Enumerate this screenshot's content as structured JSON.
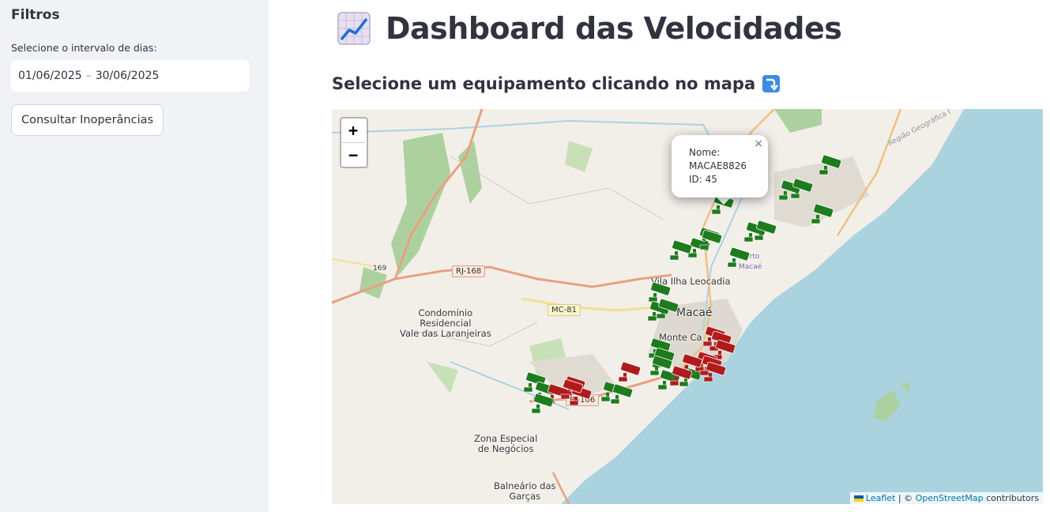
{
  "sidebar": {
    "title": "Filtros",
    "date_label": "Selecione o intervalo de dias:",
    "date_start": "01/06/2025",
    "date_sep": "–",
    "date_end": "30/06/2025",
    "button_label": "Consultar Inoperâncias"
  },
  "main": {
    "title": "Dashboard das Velocidades",
    "title_icon": "chart-increasing-icon",
    "subtitle": "Selecione um equipamento clicando no mapa",
    "subtitle_icon": "arrow-down-icon"
  },
  "map": {
    "zoom_in": "+",
    "zoom_out": "−",
    "popup": {
      "line1": "Nome:",
      "line2": "MACAE8826",
      "line3": "ID: 45",
      "close": "×"
    },
    "labels": {
      "vila": "Vila Ilha Leocadia",
      "macae": "Macaé",
      "monte": "Monte Ca",
      "condominio": "Condomínio\nResidencial\nVale das Laranjeiras",
      "zona": "Zona Especial\nde Negócios",
      "balneario": "Balneário das\nGarças",
      "porto": "Porto\nMacaé",
      "regiao": "Região Geográfica I",
      "rj168": "RJ-168",
      "mc81": "MC-81",
      "rj106": "RJ-106",
      "r169": "169"
    },
    "attribution": {
      "leaflet": "Leaflet",
      "sep": " | © ",
      "osm": "OpenStreetMap",
      "contrib": " contributors"
    },
    "colors": {
      "green_marker": "#1e7b1e",
      "red_marker": "#b01c1c",
      "sea": "#aad3df",
      "land": "#f2efe9"
    }
  }
}
